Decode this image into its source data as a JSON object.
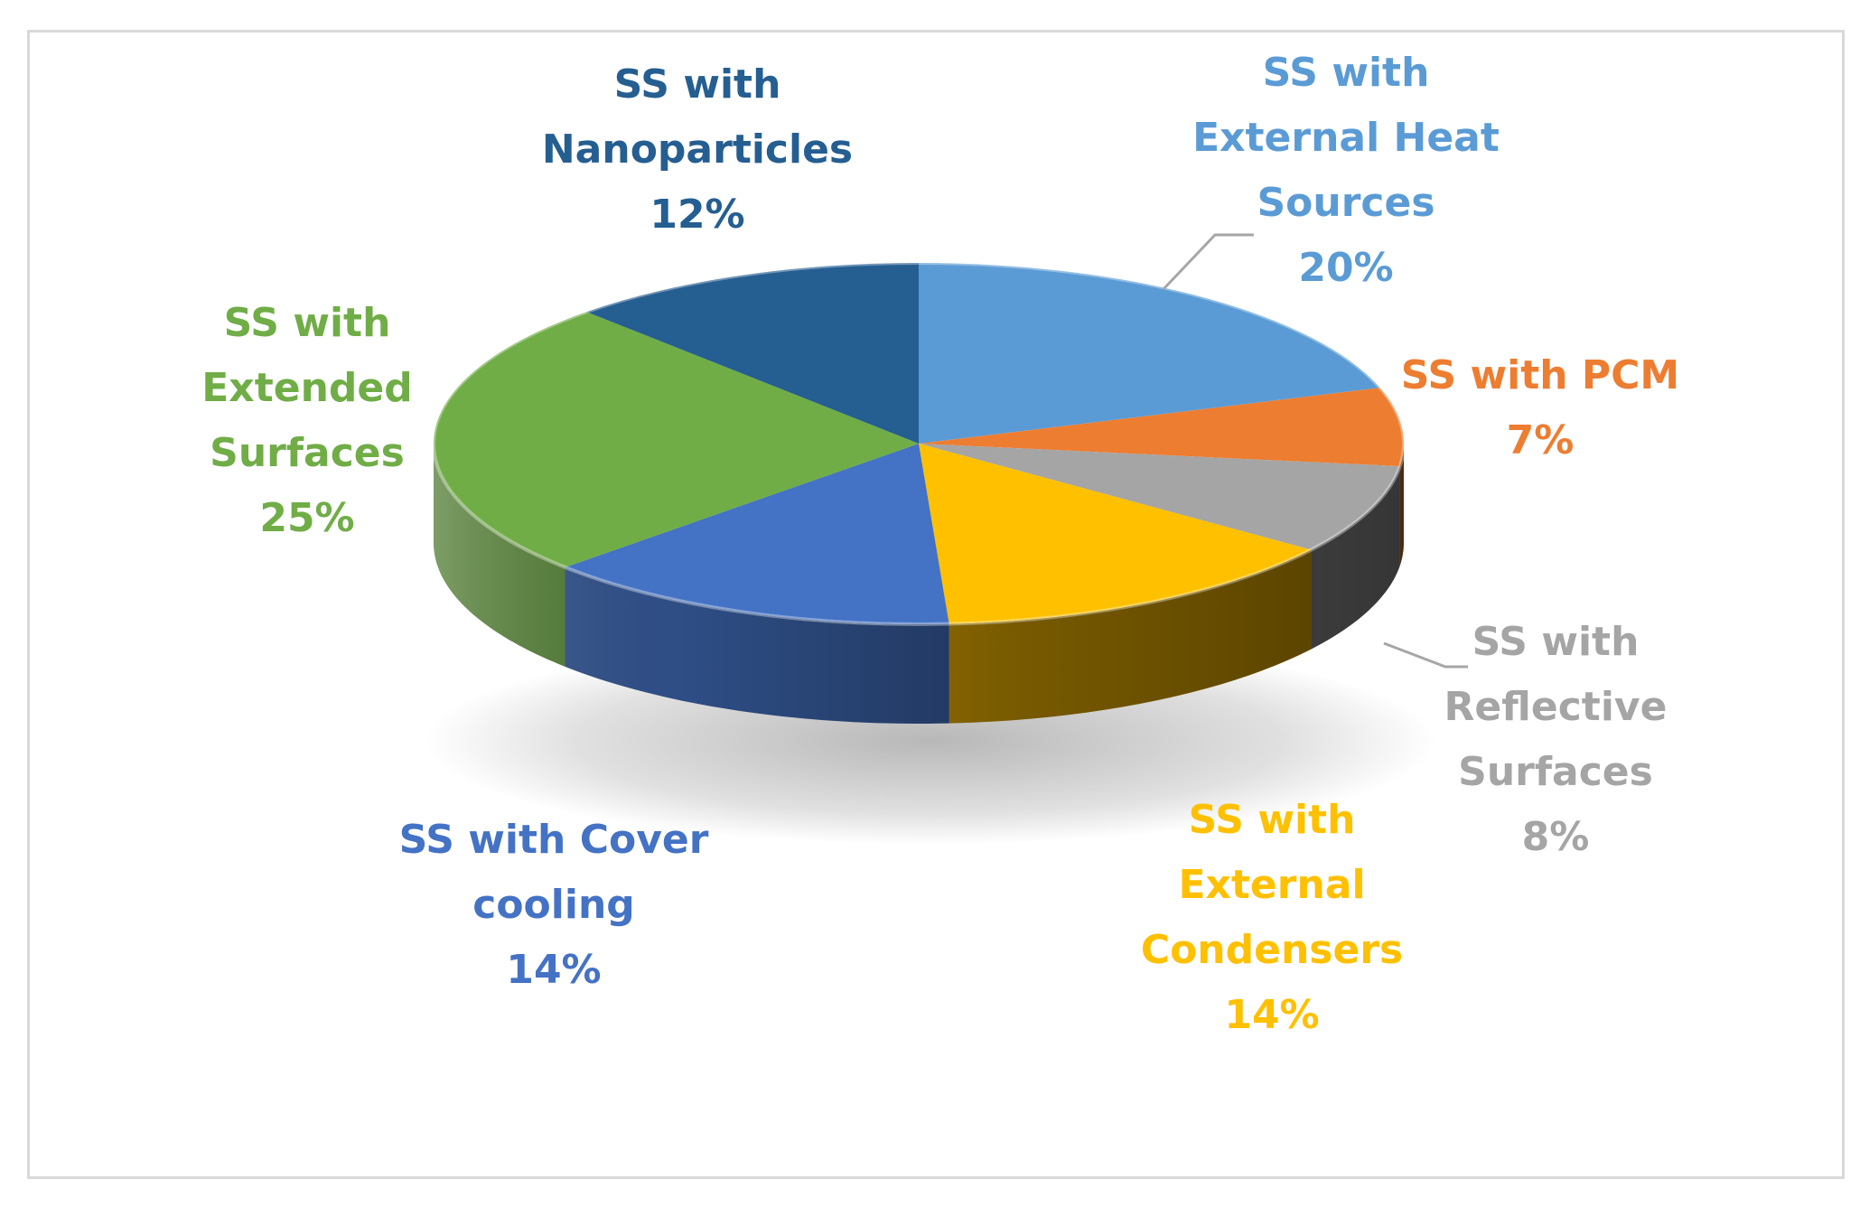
{
  "chart_data": {
    "type": "pie",
    "title": "",
    "style": "3d-pie",
    "legend": "none",
    "start_angle": "top (12 o'clock), clockwise",
    "slices": [
      {
        "label": "SS with External Heat Sources",
        "value": 20,
        "value_label": "20%",
        "color": "#5B9BD5",
        "label_lines": [
          "SS with",
          "External Heat",
          "Sources"
        ]
      },
      {
        "label": "SS with PCM",
        "value": 7,
        "value_label": "7%",
        "color": "#ED7D31",
        "label_lines": [
          "SS with PCM"
        ]
      },
      {
        "label": "SS with Reflective Surfaces",
        "value": 8,
        "value_label": "8%",
        "color": "#A5A5A5",
        "label_lines": [
          "SS with",
          "Reflective",
          "Surfaces"
        ]
      },
      {
        "label": "SS with External Condensers",
        "value": 14,
        "value_label": "14%",
        "color": "#FFC000",
        "label_lines": [
          "SS with",
          "External",
          "Condensers"
        ]
      },
      {
        "label": "SS with Cover cooling",
        "value": 14,
        "value_label": "14%",
        "color": "#4472C4",
        "label_lines": [
          "SS with Cover",
          "cooling"
        ]
      },
      {
        "label": "SS with Extended Surfaces",
        "value": 25,
        "value_label": "25%",
        "color": "#70AD47",
        "label_lines": [
          "SS with",
          "Extended",
          "Surfaces"
        ]
      },
      {
        "label": "SS with Nanoparticles",
        "value": 12,
        "value_label": "12%",
        "color": "#255E91",
        "label_lines": [
          "SS with",
          "Nanoparticles"
        ]
      }
    ],
    "label_colors": [
      "#5B9BD5",
      "#ED7D31",
      "#A5A5A5",
      "#FFC000",
      "#4472C4",
      "#70AD47",
      "#255E91"
    ],
    "leader_line_color": "#A6A6A6"
  }
}
